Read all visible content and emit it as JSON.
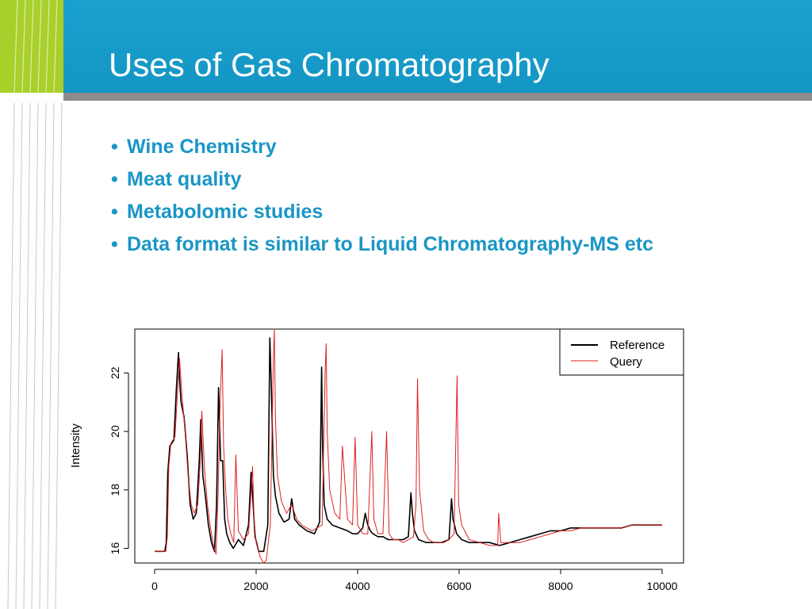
{
  "slide": {
    "title": "Uses of Gas Chromatography",
    "bullets": [
      "Wine Chemistry",
      "Meat quality",
      "Metabolomic studies",
      "Data format is similar to Liquid Chromatography-MS etc"
    ],
    "bullet_symbol": "•",
    "colors": {
      "header": "#1aa0cf",
      "accent_green": "#a8cf2a",
      "header_rule": "#8c8c8c",
      "bullet_text": "#1a96c4",
      "title_text": "#ffffff"
    }
  },
  "chart_data": {
    "type": "line",
    "ylabel": "Intensity",
    "xlim": [
      0,
      10000
    ],
    "ylim": [
      15.5,
      23.5
    ],
    "x_ticks": [
      0,
      2000,
      4000,
      6000,
      8000,
      10000
    ],
    "x_tick_labels": [
      "0",
      "2000",
      "4000",
      "6000",
      "8000",
      "10000"
    ],
    "y_ticks": [
      16,
      18,
      20,
      22
    ],
    "y_tick_labels": [
      "16",
      "18",
      "20",
      "22"
    ],
    "legend": {
      "position": "top-right"
    },
    "series": [
      {
        "name": "Reference",
        "color": "#000000",
        "x": [
          0,
          200,
          230,
          260,
          300,
          380,
          430,
          470,
          490,
          520,
          580,
          640,
          700,
          760,
          820,
          880,
          910,
          950,
          1000,
          1060,
          1120,
          1180,
          1220,
          1260,
          1300,
          1340,
          1380,
          1420,
          1480,
          1550,
          1650,
          1750,
          1850,
          1900,
          1940,
          1980,
          2050,
          2150,
          2230,
          2270,
          2300,
          2340,
          2380,
          2450,
          2550,
          2650,
          2700,
          2760,
          2850,
          3000,
          3150,
          3250,
          3290,
          3310,
          3340,
          3400,
          3500,
          3650,
          3800,
          3900,
          4000,
          4100,
          4150,
          4200,
          4250,
          4300,
          4400,
          4500,
          4600,
          4700,
          4800,
          4900,
          5000,
          5050,
          5080,
          5120,
          5200,
          5350,
          5500,
          5650,
          5800,
          5850,
          5880,
          5950,
          6050,
          6200,
          6400,
          6600,
          6800,
          7000,
          7200,
          7400,
          7600,
          7800,
          8000,
          8200,
          8400,
          8600,
          8800,
          9000,
          9200,
          9400,
          9600,
          9800,
          10000
        ],
        "y": [
          15.9,
          15.9,
          16.2,
          18.6,
          19.5,
          19.7,
          21.5,
          22.7,
          21.8,
          21.0,
          20.5,
          19.2,
          17.5,
          17.0,
          17.2,
          19.0,
          20.4,
          18.5,
          17.8,
          16.8,
          16.2,
          15.9,
          17.5,
          21.5,
          19.0,
          19.0,
          17.0,
          16.5,
          16.2,
          16.0,
          16.3,
          16.1,
          16.8,
          18.6,
          17.5,
          16.4,
          15.9,
          15.9,
          16.8,
          23.2,
          21.5,
          18.5,
          17.8,
          17.2,
          16.9,
          17.0,
          17.7,
          17.0,
          16.8,
          16.6,
          16.5,
          16.9,
          22.2,
          19.5,
          17.5,
          17.0,
          16.8,
          16.7,
          16.6,
          16.5,
          16.5,
          16.7,
          17.2,
          16.8,
          16.6,
          16.5,
          16.4,
          16.4,
          16.3,
          16.3,
          16.3,
          16.3,
          16.4,
          17.9,
          17.2,
          16.6,
          16.3,
          16.2,
          16.2,
          16.2,
          16.3,
          17.7,
          17.0,
          16.5,
          16.3,
          16.2,
          16.2,
          16.2,
          16.1,
          16.2,
          16.3,
          16.4,
          16.5,
          16.6,
          16.6,
          16.7,
          16.7,
          16.7,
          16.7,
          16.7,
          16.7,
          16.8,
          16.8,
          16.8,
          16.8
        ]
      },
      {
        "name": "Query",
        "color": "#e02020",
        "x": [
          0,
          220,
          250,
          280,
          320,
          400,
          450,
          490,
          510,
          540,
          600,
          660,
          720,
          780,
          850,
          900,
          930,
          980,
          1040,
          1100,
          1160,
          1210,
          1250,
          1290,
          1330,
          1360,
          1400,
          1440,
          1500,
          1560,
          1600,
          1650,
          1750,
          1850,
          1930,
          1960,
          2000,
          2080,
          2150,
          2200,
          2280,
          2340,
          2360,
          2380,
          2420,
          2500,
          2600,
          2700,
          2800,
          2900,
          3000,
          3100,
          3200,
          3300,
          3360,
          3380,
          3400,
          3450,
          3550,
          3650,
          3700,
          3800,
          3900,
          3950,
          4000,
          4100,
          4200,
          4280,
          4320,
          4400,
          4500,
          4570,
          4620,
          4700,
          4800,
          4900,
          5000,
          5100,
          5150,
          5180,
          5220,
          5300,
          5400,
          5500,
          5600,
          5700,
          5800,
          5900,
          5960,
          5990,
          6050,
          6200,
          6400,
          6600,
          6760,
          6780,
          6820,
          7000,
          7200,
          7400,
          7600,
          7800,
          8000,
          8200,
          8400,
          8600,
          8800,
          9000,
          9200,
          9400,
          9600,
          9800,
          10000
        ],
        "y": [
          15.9,
          15.9,
          16.4,
          18.8,
          19.6,
          19.8,
          21.3,
          22.5,
          22.0,
          21.2,
          20.0,
          18.5,
          17.5,
          17.2,
          17.5,
          19.0,
          20.7,
          18.8,
          17.5,
          16.7,
          16.1,
          15.8,
          17.8,
          21.0,
          22.8,
          19.5,
          18.0,
          17.0,
          16.5,
          16.2,
          19.2,
          16.6,
          16.3,
          16.5,
          18.8,
          17.0,
          16.2,
          15.7,
          15.5,
          15.6,
          16.8,
          22.5,
          23.5,
          20.5,
          18.5,
          17.6,
          17.2,
          17.5,
          17.0,
          16.8,
          16.7,
          16.6,
          16.7,
          16.8,
          22.0,
          23.0,
          20.0,
          18.0,
          17.2,
          17.0,
          19.5,
          17.0,
          16.8,
          19.8,
          16.8,
          16.5,
          16.5,
          20.0,
          17.0,
          16.5,
          16.5,
          20.0,
          16.5,
          16.3,
          16.3,
          16.2,
          16.3,
          16.4,
          17.5,
          21.8,
          18.0,
          16.6,
          16.3,
          16.2,
          16.2,
          16.2,
          16.3,
          16.5,
          21.9,
          17.5,
          16.8,
          16.3,
          16.2,
          16.1,
          16.1,
          17.2,
          16.2,
          16.2,
          16.2,
          16.3,
          16.4,
          16.5,
          16.6,
          16.6,
          16.7,
          16.7,
          16.7,
          16.7,
          16.7,
          16.8,
          16.8,
          16.8,
          16.8
        ]
      }
    ]
  }
}
